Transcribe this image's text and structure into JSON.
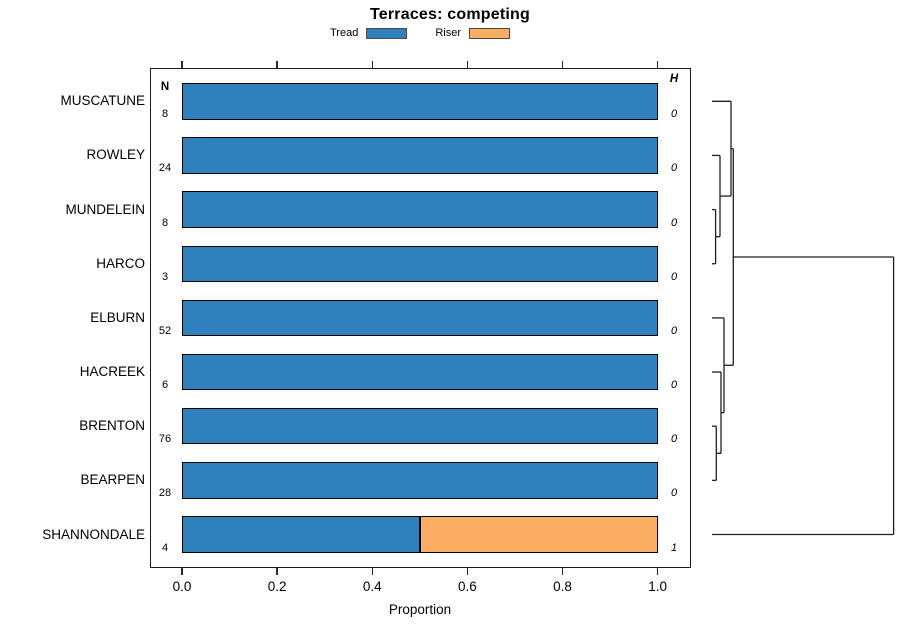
{
  "title": "Terraces: competing",
  "legend": [
    {
      "label": "Tread",
      "color": "#2e81bc"
    },
    {
      "label": "Riser",
      "color": "#fcad64"
    }
  ],
  "columns": {
    "n_header": "N",
    "h_header": "H"
  },
  "axis": {
    "title": "Proportion",
    "range": [
      0,
      1
    ],
    "ticks": [
      0.0,
      0.2,
      0.4,
      0.6,
      0.8,
      1.0
    ],
    "tick_labels": [
      "0.0",
      "0.2",
      "0.4",
      "0.6",
      "0.8",
      "1.0"
    ]
  },
  "chart_data": {
    "type": "bar",
    "orientation": "horizontal",
    "stacked": true,
    "title": "Terraces: competing",
    "xlabel": "Proportion",
    "xlim": [
      0,
      1
    ],
    "grid": false,
    "legend_position": "top",
    "categories": [
      "MUSCATUNE",
      "ROWLEY",
      "MUNDELEIN",
      "HARCO",
      "ELBURN",
      "HACREEK",
      "BRENTON",
      "BEARPEN",
      "SHANNONDALE"
    ],
    "series": [
      {
        "name": "Tread",
        "color": "#2e81bc",
        "values": [
          1.0,
          1.0,
          1.0,
          1.0,
          1.0,
          1.0,
          1.0,
          1.0,
          0.5
        ]
      },
      {
        "name": "Riser",
        "color": "#fcad64",
        "values": [
          0.0,
          0.0,
          0.0,
          0.0,
          0.0,
          0.0,
          0.0,
          0.0,
          0.5
        ]
      }
    ],
    "n_values": [
      8,
      24,
      8,
      3,
      52,
      6,
      76,
      28,
      4
    ],
    "h_values": [
      0,
      0,
      0,
      0,
      0,
      0,
      0,
      0,
      1
    ],
    "dendrogram": {
      "note": "right-side cluster tree; leaves in category order; heights in relative plot units (no scale shown)",
      "merges": [
        {
          "a": -3,
          "b": -4,
          "h": 3.6
        },
        {
          "a": -2,
          "b": 1,
          "h": 8.0
        },
        {
          "a": -1,
          "b": 2,
          "h": 19.0
        },
        {
          "a": -7,
          "b": -8,
          "h": 4.3
        },
        {
          "a": -6,
          "b": 4,
          "h": 9.0
        },
        {
          "a": -5,
          "b": 5,
          "h": 12.0
        },
        {
          "a": 3,
          "b": 6,
          "h": 21.3
        },
        {
          "a": 7,
          "b": -9,
          "h": 181.6
        }
      ]
    }
  }
}
